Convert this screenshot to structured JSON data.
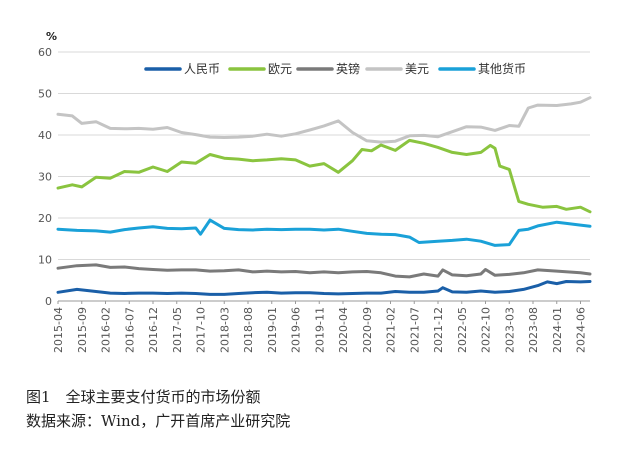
{
  "caption": {
    "title": "图1　全球主要支付货币的市场份额",
    "source": "数据来源：Wind，广开首席产业研究院"
  },
  "chart_data": {
    "type": "line",
    "unit": "%",
    "ylim": [
      0,
      60
    ],
    "yticks": [
      0,
      10,
      20,
      30,
      40,
      50,
      60
    ],
    "x_start": "2015-04",
    "x_end": "2024-08",
    "x_tick_labels": [
      "2015-04",
      "2015-09",
      "2016-02",
      "2016-07",
      "2016-12",
      "2017-05",
      "2017-10",
      "2018-03",
      "2018-08",
      "2019-01",
      "2019-06",
      "2019-11",
      "2020-04",
      "2020-09",
      "2021-02",
      "2021-07",
      "2021-12",
      "2022-05",
      "2022-10",
      "2023-03",
      "2023-08",
      "2024-01",
      "2024-06"
    ],
    "grid": "horizontal",
    "legend_position": "top",
    "series": [
      {
        "name": "人民币",
        "color": "#1a5fa8",
        "values": [
          [
            "2015-04",
            2.1
          ],
          [
            "2015-08",
            2.8
          ],
          [
            "2015-12",
            2.3
          ],
          [
            "2016-03",
            1.9
          ],
          [
            "2016-06",
            1.8
          ],
          [
            "2016-09",
            1.9
          ],
          [
            "2016-12",
            1.9
          ],
          [
            "2017-03",
            1.8
          ],
          [
            "2017-06",
            1.9
          ],
          [
            "2017-09",
            1.8
          ],
          [
            "2017-12",
            1.6
          ],
          [
            "2018-03",
            1.6
          ],
          [
            "2018-06",
            1.8
          ],
          [
            "2018-09",
            2.0
          ],
          [
            "2018-12",
            2.1
          ],
          [
            "2019-03",
            1.9
          ],
          [
            "2019-06",
            2.0
          ],
          [
            "2019-09",
            2.0
          ],
          [
            "2019-12",
            1.8
          ],
          [
            "2020-03",
            1.7
          ],
          [
            "2020-06",
            1.8
          ],
          [
            "2020-09",
            1.9
          ],
          [
            "2020-12",
            1.9
          ],
          [
            "2021-03",
            2.3
          ],
          [
            "2021-06",
            2.1
          ],
          [
            "2021-09",
            2.1
          ],
          [
            "2021-12",
            2.4
          ],
          [
            "2022-01",
            3.2
          ],
          [
            "2022-03",
            2.2
          ],
          [
            "2022-06",
            2.1
          ],
          [
            "2022-09",
            2.4
          ],
          [
            "2022-12",
            2.1
          ],
          [
            "2023-03",
            2.3
          ],
          [
            "2023-06",
            2.8
          ],
          [
            "2023-09",
            3.7
          ],
          [
            "2023-11",
            4.6
          ],
          [
            "2024-01",
            4.2
          ],
          [
            "2024-03",
            4.7
          ],
          [
            "2024-06",
            4.6
          ],
          [
            "2024-08",
            4.7
          ]
        ]
      },
      {
        "name": "欧元",
        "color": "#8ac43f",
        "values": [
          [
            "2015-04",
            27.2
          ],
          [
            "2015-07",
            28.0
          ],
          [
            "2015-09",
            27.5
          ],
          [
            "2015-12",
            29.8
          ],
          [
            "2016-03",
            29.6
          ],
          [
            "2016-06",
            31.2
          ],
          [
            "2016-09",
            31.0
          ],
          [
            "2016-12",
            32.3
          ],
          [
            "2017-03",
            31.2
          ],
          [
            "2017-06",
            33.5
          ],
          [
            "2017-09",
            33.2
          ],
          [
            "2017-12",
            35.3
          ],
          [
            "2018-03",
            34.4
          ],
          [
            "2018-06",
            34.2
          ],
          [
            "2018-09",
            33.8
          ],
          [
            "2018-12",
            34.0
          ],
          [
            "2019-03",
            34.3
          ],
          [
            "2019-06",
            34.0
          ],
          [
            "2019-09",
            32.5
          ],
          [
            "2019-12",
            33.1
          ],
          [
            "2020-03",
            31.0
          ],
          [
            "2020-06",
            33.8
          ],
          [
            "2020-08",
            36.5
          ],
          [
            "2020-10",
            36.2
          ],
          [
            "2020-12",
            37.6
          ],
          [
            "2021-03",
            36.3
          ],
          [
            "2021-06",
            38.7
          ],
          [
            "2021-09",
            38.0
          ],
          [
            "2021-12",
            37.0
          ],
          [
            "2022-03",
            35.8
          ],
          [
            "2022-06",
            35.3
          ],
          [
            "2022-09",
            35.8
          ],
          [
            "2022-11",
            37.5
          ],
          [
            "2022-12",
            36.8
          ],
          [
            "2023-01",
            32.5
          ],
          [
            "2023-03",
            31.7
          ],
          [
            "2023-05",
            24.0
          ],
          [
            "2023-07",
            23.3
          ],
          [
            "2023-10",
            22.6
          ],
          [
            "2024-01",
            22.8
          ],
          [
            "2024-03",
            22.1
          ],
          [
            "2024-06",
            22.6
          ],
          [
            "2024-08",
            21.5
          ]
        ]
      },
      {
        "name": "英镑",
        "color": "#7a7a7a",
        "values": [
          [
            "2015-04",
            7.9
          ],
          [
            "2015-08",
            8.5
          ],
          [
            "2015-12",
            8.7
          ],
          [
            "2016-03",
            8.1
          ],
          [
            "2016-06",
            8.2
          ],
          [
            "2016-09",
            7.8
          ],
          [
            "2016-12",
            7.6
          ],
          [
            "2017-03",
            7.4
          ],
          [
            "2017-06",
            7.5
          ],
          [
            "2017-09",
            7.5
          ],
          [
            "2017-12",
            7.2
          ],
          [
            "2018-03",
            7.3
          ],
          [
            "2018-06",
            7.5
          ],
          [
            "2018-09",
            7.0
          ],
          [
            "2018-12",
            7.2
          ],
          [
            "2019-03",
            7.0
          ],
          [
            "2019-06",
            7.1
          ],
          [
            "2019-09",
            6.8
          ],
          [
            "2019-12",
            7.0
          ],
          [
            "2020-03",
            6.8
          ],
          [
            "2020-06",
            7.0
          ],
          [
            "2020-09",
            7.1
          ],
          [
            "2020-12",
            6.8
          ],
          [
            "2021-03",
            6.0
          ],
          [
            "2021-06",
            5.8
          ],
          [
            "2021-09",
            6.5
          ],
          [
            "2021-12",
            6.0
          ],
          [
            "2022-01",
            7.5
          ],
          [
            "2022-03",
            6.3
          ],
          [
            "2022-06",
            6.1
          ],
          [
            "2022-09",
            6.5
          ],
          [
            "2022-10",
            7.6
          ],
          [
            "2022-12",
            6.2
          ],
          [
            "2023-03",
            6.4
          ],
          [
            "2023-06",
            6.8
          ],
          [
            "2023-09",
            7.5
          ],
          [
            "2024-01",
            7.2
          ],
          [
            "2024-06",
            6.8
          ],
          [
            "2024-08",
            6.5
          ]
        ]
      },
      {
        "name": "美元",
        "color": "#c4c4c4",
        "values": [
          [
            "2015-04",
            45.0
          ],
          [
            "2015-07",
            44.6
          ],
          [
            "2015-09",
            42.8
          ],
          [
            "2015-12",
            43.2
          ],
          [
            "2016-03",
            41.6
          ],
          [
            "2016-06",
            41.5
          ],
          [
            "2016-09",
            41.6
          ],
          [
            "2016-12",
            41.4
          ],
          [
            "2017-03",
            41.8
          ],
          [
            "2017-06",
            40.6
          ],
          [
            "2017-09",
            40.1
          ],
          [
            "2017-12",
            39.5
          ],
          [
            "2018-03",
            39.4
          ],
          [
            "2018-06",
            39.5
          ],
          [
            "2018-09",
            39.7
          ],
          [
            "2018-12",
            40.2
          ],
          [
            "2019-03",
            39.7
          ],
          [
            "2019-06",
            40.3
          ],
          [
            "2019-09",
            41.2
          ],
          [
            "2019-12",
            42.2
          ],
          [
            "2020-03",
            43.4
          ],
          [
            "2020-06",
            40.6
          ],
          [
            "2020-09",
            38.6
          ],
          [
            "2020-12",
            38.3
          ],
          [
            "2021-03",
            38.5
          ],
          [
            "2021-06",
            39.8
          ],
          [
            "2021-09",
            39.9
          ],
          [
            "2021-12",
            39.6
          ],
          [
            "2022-03",
            40.8
          ],
          [
            "2022-06",
            42.0
          ],
          [
            "2022-09",
            41.9
          ],
          [
            "2022-12",
            41.1
          ],
          [
            "2023-03",
            42.3
          ],
          [
            "2023-05",
            42.1
          ],
          [
            "2023-07",
            46.5
          ],
          [
            "2023-09",
            47.2
          ],
          [
            "2024-01",
            47.1
          ],
          [
            "2024-04",
            47.5
          ],
          [
            "2024-06",
            47.9
          ],
          [
            "2024-08",
            49.0
          ]
        ]
      },
      {
        "name": "其他货币",
        "color": "#1aa1d8",
        "values": [
          [
            "2015-04",
            17.3
          ],
          [
            "2015-08",
            17.0
          ],
          [
            "2015-12",
            16.9
          ],
          [
            "2016-03",
            16.6
          ],
          [
            "2016-06",
            17.2
          ],
          [
            "2016-09",
            17.6
          ],
          [
            "2016-12",
            17.9
          ],
          [
            "2017-03",
            17.5
          ],
          [
            "2017-06",
            17.4
          ],
          [
            "2017-09",
            17.6
          ],
          [
            "2017-10",
            16.1
          ],
          [
            "2017-12",
            19.5
          ],
          [
            "2018-03",
            17.5
          ],
          [
            "2018-06",
            17.2
          ],
          [
            "2018-09",
            17.1
          ],
          [
            "2018-12",
            17.3
          ],
          [
            "2019-03",
            17.2
          ],
          [
            "2019-06",
            17.3
          ],
          [
            "2019-09",
            17.3
          ],
          [
            "2019-12",
            17.1
          ],
          [
            "2020-03",
            17.3
          ],
          [
            "2020-06",
            16.8
          ],
          [
            "2020-09",
            16.3
          ],
          [
            "2020-12",
            16.1
          ],
          [
            "2021-03",
            16.0
          ],
          [
            "2021-06",
            15.4
          ],
          [
            "2021-08",
            14.1
          ],
          [
            "2021-12",
            14.4
          ],
          [
            "2022-03",
            14.6
          ],
          [
            "2022-06",
            14.9
          ],
          [
            "2022-09",
            14.4
          ],
          [
            "2022-12",
            13.4
          ],
          [
            "2023-03",
            13.6
          ],
          [
            "2023-05",
            17.0
          ],
          [
            "2023-07",
            17.3
          ],
          [
            "2023-09",
            18.1
          ],
          [
            "2024-01",
            19.0
          ],
          [
            "2024-03",
            18.7
          ],
          [
            "2024-06",
            18.3
          ],
          [
            "2024-08",
            18.0
          ]
        ]
      }
    ]
  }
}
